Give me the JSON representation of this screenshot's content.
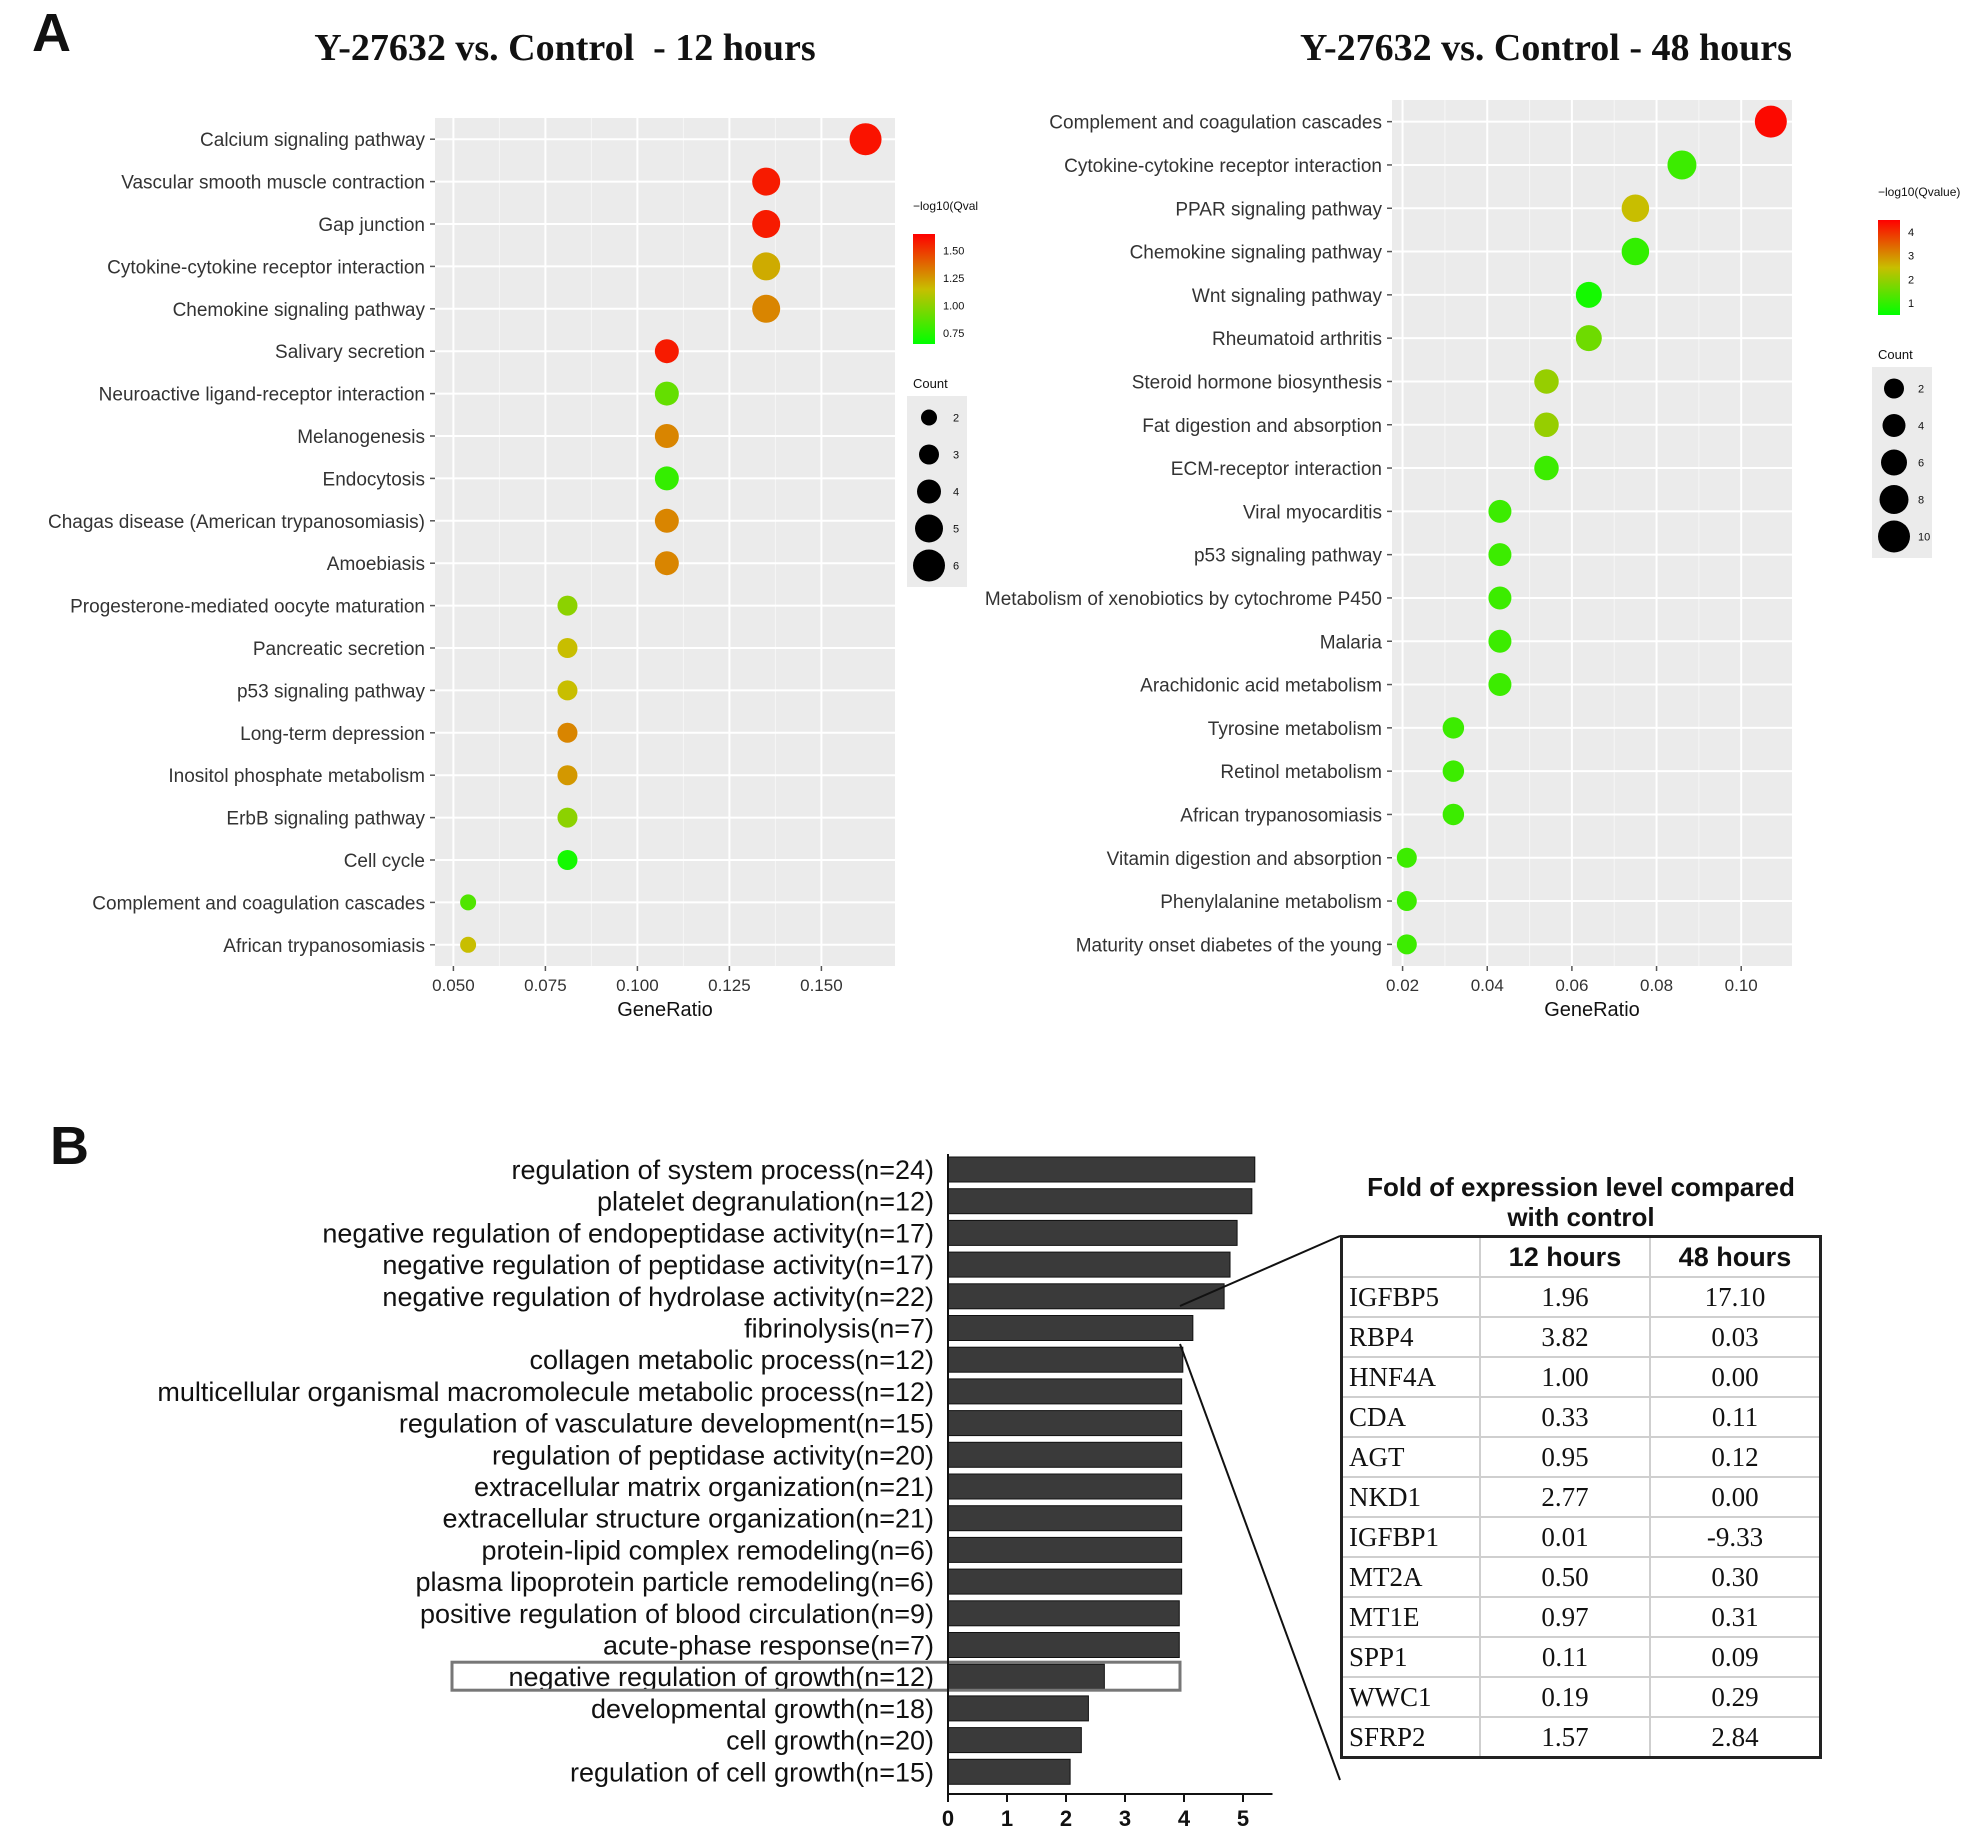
{
  "panels": {
    "a": "A",
    "b": "B"
  },
  "colors": {
    "high": "#ff0000",
    "mid": "#c8b400",
    "low": "#00ff00",
    "bar": "#3a3a3a",
    "panel_bg": "#ebebeb"
  },
  "chart_data": [
    {
      "type": "scatter",
      "title": "Y-27632 vs. Control  - 12 hours",
      "xlabel": "GeneRatio",
      "ylabel": "",
      "xlim": [
        0.045,
        0.17
      ],
      "xticks": [
        "0.050",
        "0.075",
        "0.100",
        "0.125",
        "0.150"
      ],
      "xtick_values": [
        0.05,
        0.075,
        0.1,
        0.125,
        0.15
      ],
      "grid": true,
      "color_legend": {
        "title": "−log10(Qval",
        "ticks": [
          "1.50",
          "1.25",
          "1.00",
          "0.75"
        ],
        "tick_values": [
          1.5,
          1.25,
          1.0,
          0.75
        ],
        "range": [
          0.65,
          1.65
        ]
      },
      "size_legend": {
        "title": "Count",
        "ticks": [
          "2",
          "3",
          "4",
          "5",
          "6"
        ],
        "tick_values": [
          2,
          3,
          4,
          5,
          6
        ]
      },
      "points": [
        {
          "term": "Calcium signaling pathway",
          "gene_ratio": 0.162,
          "count": 6,
          "neg_log10_q": 1.6
        },
        {
          "term": "Vascular smooth muscle contraction",
          "gene_ratio": 0.135,
          "count": 5,
          "neg_log10_q": 1.58
        },
        {
          "term": "Gap junction",
          "gene_ratio": 0.135,
          "count": 5,
          "neg_log10_q": 1.58
        },
        {
          "term": "Cytokine-cytokine receptor interaction",
          "gene_ratio": 0.135,
          "count": 5,
          "neg_log10_q": 1.2
        },
        {
          "term": "Chemokine signaling pathway",
          "gene_ratio": 0.135,
          "count": 5,
          "neg_log10_q": 1.3
        },
        {
          "term": "Salivary secretion",
          "gene_ratio": 0.108,
          "count": 4,
          "neg_log10_q": 1.58
        },
        {
          "term": "Neuroactive ligand-receptor interaction",
          "gene_ratio": 0.108,
          "count": 4,
          "neg_log10_q": 0.9
        },
        {
          "term": "Melanogenesis",
          "gene_ratio": 0.108,
          "count": 4,
          "neg_log10_q": 1.3
        },
        {
          "term": "Endocytosis",
          "gene_ratio": 0.108,
          "count": 4,
          "neg_log10_q": 0.78
        },
        {
          "term": "Chagas disease (American trypanosomiasis)",
          "gene_ratio": 0.108,
          "count": 4,
          "neg_log10_q": 1.3
        },
        {
          "term": "Amoebiasis",
          "gene_ratio": 0.108,
          "count": 4,
          "neg_log10_q": 1.3
        },
        {
          "term": "Progesterone-mediated oocyte maturation",
          "gene_ratio": 0.081,
          "count": 3,
          "neg_log10_q": 1.0
        },
        {
          "term": "Pancreatic secretion",
          "gene_ratio": 0.081,
          "count": 3,
          "neg_log10_q": 1.15
        },
        {
          "term": "p53 signaling pathway",
          "gene_ratio": 0.081,
          "count": 3,
          "neg_log10_q": 1.15
        },
        {
          "term": "Long-term depression",
          "gene_ratio": 0.081,
          "count": 3,
          "neg_log10_q": 1.3
        },
        {
          "term": "Inositol phosphate metabolism",
          "gene_ratio": 0.081,
          "count": 3,
          "neg_log10_q": 1.25
        },
        {
          "term": "ErbB signaling pathway",
          "gene_ratio": 0.081,
          "count": 3,
          "neg_log10_q": 1.0
        },
        {
          "term": "Cell cycle",
          "gene_ratio": 0.081,
          "count": 3,
          "neg_log10_q": 0.7
        },
        {
          "term": "Complement and coagulation cascades",
          "gene_ratio": 0.054,
          "count": 2,
          "neg_log10_q": 0.85
        },
        {
          "term": "African trypanosomiasis",
          "gene_ratio": 0.054,
          "count": 2,
          "neg_log10_q": 1.15
        }
      ]
    },
    {
      "type": "scatter",
      "title": "Y-27632 vs. Control - 48 hours",
      "xlabel": "GeneRatio",
      "ylabel": "",
      "xlim": [
        0.0175,
        0.112
      ],
      "xticks": [
        "0.02",
        "0.04",
        "0.06",
        "0.08",
        "0.10"
      ],
      "xtick_values": [
        0.02,
        0.04,
        0.06,
        0.08,
        0.1
      ],
      "grid": true,
      "color_legend": {
        "title": "−log10(Qvalue)",
        "ticks": [
          "4",
          "3",
          "2",
          "1"
        ],
        "tick_values": [
          4,
          3,
          2,
          1
        ],
        "range": [
          0.5,
          4.5
        ]
      },
      "size_legend": {
        "title": "Count",
        "ticks": [
          "2",
          "4",
          "6",
          "8",
          "10"
        ],
        "tick_values": [
          2,
          4,
          6,
          8,
          10
        ]
      },
      "points": [
        {
          "term": "Complement and coagulation cascades",
          "gene_ratio": 0.107,
          "count": 10,
          "neg_log10_q": 4.4
        },
        {
          "term": "Cytokine-cytokine receptor interaction",
          "gene_ratio": 0.086,
          "count": 8,
          "neg_log10_q": 1.1
        },
        {
          "term": "PPAR signaling pathway",
          "gene_ratio": 0.075,
          "count": 7,
          "neg_log10_q": 2.5
        },
        {
          "term": "Chemokine signaling pathway",
          "gene_ratio": 0.075,
          "count": 7,
          "neg_log10_q": 1.0
        },
        {
          "term": "Wnt signaling pathway",
          "gene_ratio": 0.064,
          "count": 6,
          "neg_log10_q": 0.7
        },
        {
          "term": "Rheumatoid arthritis",
          "gene_ratio": 0.064,
          "count": 6,
          "neg_log10_q": 1.6
        },
        {
          "term": "Steroid hormone biosynthesis",
          "gene_ratio": 0.054,
          "count": 5,
          "neg_log10_q": 2.0
        },
        {
          "term": "Fat digestion and absorption",
          "gene_ratio": 0.054,
          "count": 5,
          "neg_log10_q": 2.0
        },
        {
          "term": "ECM-receptor interaction",
          "gene_ratio": 0.054,
          "count": 5,
          "neg_log10_q": 1.1
        },
        {
          "term": "Viral myocarditis",
          "gene_ratio": 0.043,
          "count": 4,
          "neg_log10_q": 1.1
        },
        {
          "term": "p53 signaling pathway",
          "gene_ratio": 0.043,
          "count": 4,
          "neg_log10_q": 1.1
        },
        {
          "term": "Metabolism of xenobiotics by cytochrome P450",
          "gene_ratio": 0.043,
          "count": 4,
          "neg_log10_q": 1.1
        },
        {
          "term": "Malaria",
          "gene_ratio": 0.043,
          "count": 4,
          "neg_log10_q": 1.1
        },
        {
          "term": "Arachidonic acid metabolism",
          "gene_ratio": 0.043,
          "count": 4,
          "neg_log10_q": 1.1
        },
        {
          "term": "Tyrosine metabolism",
          "gene_ratio": 0.032,
          "count": 3,
          "neg_log10_q": 1.1
        },
        {
          "term": "Retinol metabolism",
          "gene_ratio": 0.032,
          "count": 3,
          "neg_log10_q": 1.1
        },
        {
          "term": "African trypanosomiasis",
          "gene_ratio": 0.032,
          "count": 3,
          "neg_log10_q": 1.1
        },
        {
          "term": "Vitamin digestion and absorption",
          "gene_ratio": 0.021,
          "count": 2,
          "neg_log10_q": 1.1
        },
        {
          "term": "Phenylalanine metabolism",
          "gene_ratio": 0.021,
          "count": 2,
          "neg_log10_q": 1.1
        },
        {
          "term": "Maturity onset diabetes of the young",
          "gene_ratio": 0.021,
          "count": 2,
          "neg_log10_q": 1.1
        }
      ]
    },
    {
      "type": "bar",
      "orientation": "horizontal",
      "title": "",
      "xlabel": "",
      "ylabel": "",
      "xlim": [
        0,
        5.6
      ],
      "xticks": [
        "0",
        "1",
        "2",
        "3",
        "4",
        "5"
      ],
      "xtick_values": [
        0,
        1,
        2,
        3,
        4,
        5
      ],
      "highlighted": "negative regulation of growth(n=12)",
      "categories": [
        "regulation of system process(n=24)",
        "platelet degranulation(n=12)",
        "negative regulation of endopeptidase activity(n=17)",
        "negative regulation of peptidase activity(n=17)",
        "negative regulation of hydrolase activity(n=22)",
        "fibrinolysis(n=7)",
        "collagen metabolic process(n=12)",
        "multicellular organismal macromolecule metabolic process(n=12)",
        "regulation of vasculature development(n=15)",
        "regulation of peptidase activity(n=20)",
        "extracellular matrix organization(n=21)",
        "extracellular structure organization(n=21)",
        "protein-lipid complex remodeling(n=6)",
        "plasma lipoprotein particle remodeling(n=6)",
        "positive regulation of blood circulation(n=9)",
        "acute-phase response(n=7)",
        "negative regulation of growth(n=12)",
        "developmental growth(n=18)",
        "cell growth(n=20)",
        "regulation of cell growth(n=15)"
      ],
      "values": [
        5.2,
        5.15,
        4.9,
        4.78,
        4.68,
        4.15,
        3.98,
        3.96,
        3.96,
        3.96,
        3.96,
        3.96,
        3.96,
        3.96,
        3.92,
        3.92,
        2.65,
        2.38,
        2.26,
        2.07
      ]
    },
    {
      "type": "table",
      "title": "Fold of expression level compared with control",
      "columns": [
        "",
        "12 hours",
        "48 hours"
      ],
      "rows": [
        [
          "IGFBP5",
          "1.96",
          "17.10"
        ],
        [
          "RBP4",
          "3.82",
          "0.03"
        ],
        [
          "HNF4A",
          "1.00",
          "0.00"
        ],
        [
          "CDA",
          "0.33",
          "0.11"
        ],
        [
          "AGT",
          "0.95",
          "0.12"
        ],
        [
          "NKD1",
          "2.77",
          "0.00"
        ],
        [
          "IGFBP1",
          "0.01",
          "-9.33"
        ],
        [
          "MT2A",
          "0.50",
          "0.30"
        ],
        [
          "MT1E",
          "0.97",
          "0.31"
        ],
        [
          "SPP1",
          "0.11",
          "0.09"
        ],
        [
          "WWC1",
          "0.19",
          "0.29"
        ],
        [
          "SFRP2",
          "1.57",
          "2.84"
        ]
      ]
    }
  ]
}
